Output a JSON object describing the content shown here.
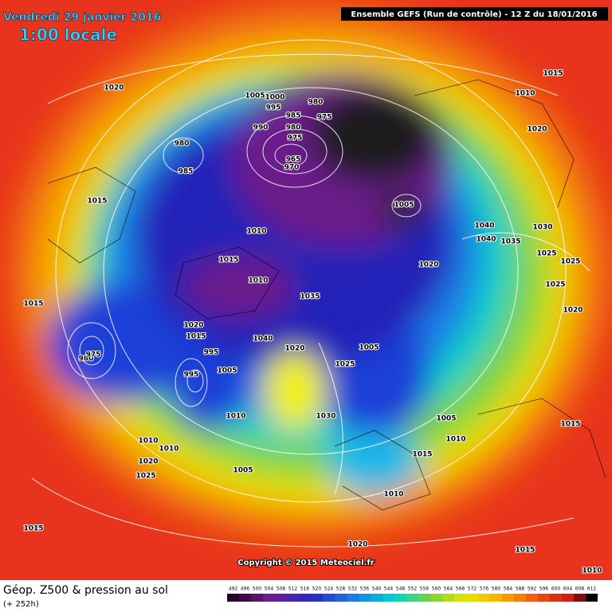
{
  "header": {
    "date": "Vendredi 29 janvier 2016",
    "time": "1:00 locale",
    "run": "Ensemble GEFS  (Run de contrôle)  -  12 Z du 18/01/2016"
  },
  "footer": {
    "title": "Géop. Z500 & pression au sol",
    "lead": "(+ 252h)",
    "copyright": "Copyright © 2015 Meteociel.fr"
  },
  "legend": {
    "values": [
      492,
      496,
      500,
      504,
      508,
      512,
      516,
      520,
      524,
      528,
      532,
      536,
      540,
      544,
      548,
      552,
      556,
      560,
      564,
      568,
      572,
      576,
      580,
      584,
      588,
      592,
      596,
      600,
      604,
      608,
      612
    ]
  },
  "isobar_labels": [
    1020,
    1005,
    1000,
    995,
    980,
    985,
    975,
    980,
    990,
    975,
    980,
    965,
    970,
    985,
    1015,
    1005,
    1010,
    1015,
    1010,
    1020,
    1035,
    1020,
    1015,
    1040,
    1020,
    995,
    1005,
    1025,
    995,
    1005,
    1015,
    980,
    975,
    1010,
    1030,
    1005,
    1010,
    1015,
    1010,
    1010,
    1020,
    1025,
    1005,
    1010,
    1020,
    1015,
    1015,
    1010,
    1015,
    1010,
    1020,
    1030,
    1040,
    1040,
    1035,
    1025,
    1025,
    1025,
    1020,
    1015
  ]
}
